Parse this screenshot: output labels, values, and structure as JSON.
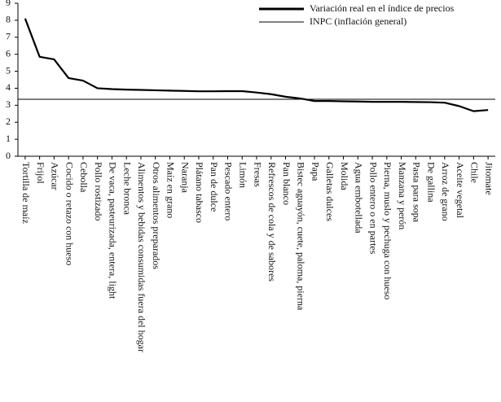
{
  "chart_data": {
    "type": "line",
    "categories": [
      "Tortilla de maíz",
      "Frijol",
      "Azúcar",
      "Cocido o retazo con hueso",
      "Cebolla",
      "Pollo rostizado",
      "De vaca, pasteurizada, entera, light",
      "Leche bronca",
      "Alimentos y bebidas consumidas fuera del hogar",
      "Otros alimentos preparados",
      "Maíz en grano",
      "Naranja",
      "Plátano tabasco",
      "Pan de dulce",
      "Pescado entero",
      "Limón",
      "Fresas",
      "Refrescos de cola y de sabores",
      "Pan blanco",
      "Bistec aguayón, cuete, paloma, pierna",
      "Papa",
      "Galletas dulces",
      "Molida",
      "Agua embotellada",
      "Pollo entero o en partes",
      "Pierna, muslo y pechuga con hueso",
      "Manzana y perón",
      "Pasta para sopa",
      "De gallina",
      "Arroz de grano",
      "Aceite vegetal",
      "Chile",
      "Jitomate"
    ],
    "series": [
      {
        "name": "Variación real en el índice de precios",
        "color": "#000000",
        "values": [
          8.1,
          5.85,
          5.7,
          4.6,
          4.45,
          4.0,
          3.95,
          3.92,
          3.9,
          3.88,
          3.86,
          3.84,
          3.82,
          3.82,
          3.83,
          3.83,
          3.75,
          3.65,
          3.5,
          3.4,
          3.25,
          3.25,
          3.23,
          3.22,
          3.2,
          3.2,
          3.2,
          3.19,
          3.18,
          3.15,
          2.95,
          2.65,
          2.72
        ]
      }
    ],
    "reference_line": {
      "name": "INPC (inflación general)",
      "value": 3.35,
      "color": "#000000"
    },
    "ylim": [
      0,
      9
    ],
    "yticks": [
      0,
      1,
      2,
      3,
      4,
      5,
      6,
      7,
      8,
      9
    ],
    "legend": "top-right"
  }
}
